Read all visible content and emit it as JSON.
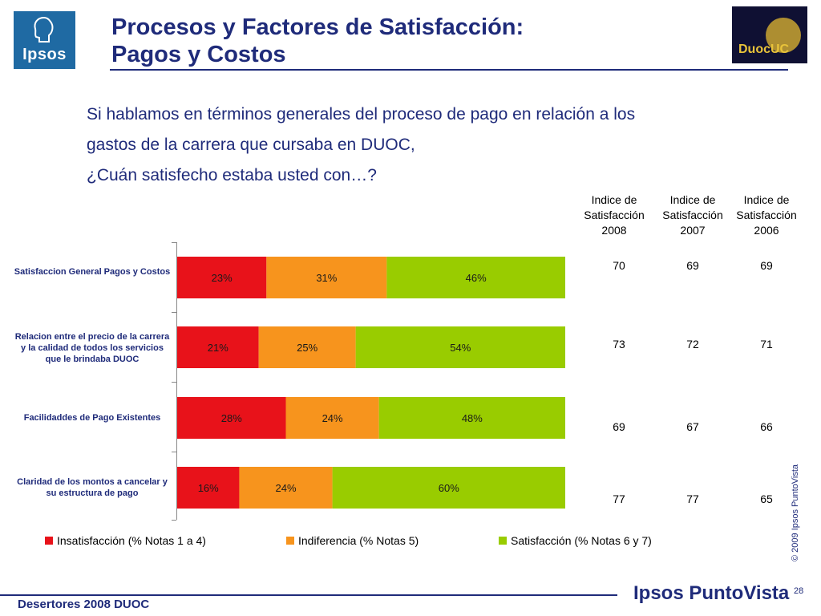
{
  "header": {
    "title_line1": "Procesos y Factores de Satisfacción:",
    "title_line2": "Pagos y Costos",
    "ipsos_logo_text": "Ipsos",
    "duoc_logo_text": "DuocUC"
  },
  "question": {
    "line1": "Si hablamos en términos generales del proceso de pago en relación a los",
    "line2": "gastos de la carrera que cursaba en DUOC,",
    "line3": "¿Cuán satisfecho estaba usted con…?"
  },
  "chart_data": {
    "type": "bar",
    "orientation": "horizontal-stacked-100",
    "categories": [
      "Satisfaccion General Pagos y Costos",
      "Relacion entre el precio de la carrera y la calidad de todos los servicios que le brindaba DUOC",
      "Facilidaddes de Pago Existentes",
      "Claridad de los montos a cancelar y su estructura de pago"
    ],
    "series": [
      {
        "name": "Insatisfacción (% Notas 1 a 4)",
        "color": "#e8121a",
        "values": [
          23,
          21,
          28,
          16
        ]
      },
      {
        "name": "Indiferencia (% Notas 5)",
        "color": "#f7941d",
        "values": [
          31,
          25,
          24,
          24
        ]
      },
      {
        "name": "Satisfacción (% Notas 6 y 7)",
        "color": "#99cc00",
        "values": [
          46,
          54,
          48,
          60
        ]
      }
    ],
    "value_suffix": "%",
    "legend_position": "bottom",
    "grid": false
  },
  "index_table": {
    "headers": [
      [
        "Indice de",
        "Satisfacción",
        "2008"
      ],
      [
        "Indice de",
        "Satisfacción",
        "2007"
      ],
      [
        "Indice de",
        "Satisfacción",
        "2006"
      ]
    ],
    "rows": [
      [
        "70",
        "69",
        "69"
      ],
      [
        "73",
        "72",
        "71"
      ],
      [
        "69",
        "67",
        "66"
      ],
      [
        "77",
        "77",
        "65"
      ]
    ]
  },
  "footer": {
    "left": "Desertores 2008 DUOC",
    "brand": "Ipsos PuntoVista",
    "copyright": "© 2009 Ipsos PuntoVista",
    "page_number": "28"
  }
}
